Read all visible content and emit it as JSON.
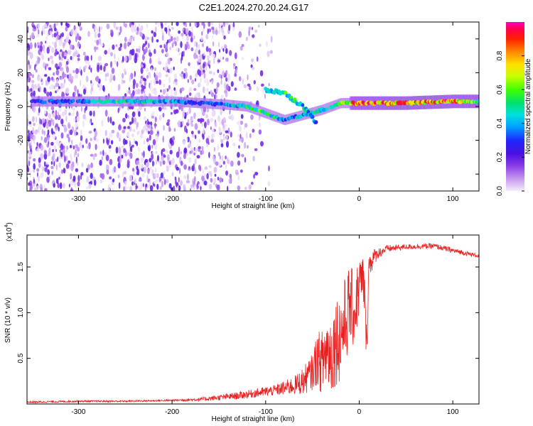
{
  "title": "C2E1.2024.270.20.24.G17",
  "chart_data": [
    {
      "type": "heatmap",
      "xlabel": "Height of straight line (km)",
      "ylabel": "Frequency (Hz)",
      "xlim": [
        -355,
        128
      ],
      "ylim": [
        -50,
        50
      ],
      "xticks": [
        -300,
        -200,
        -100,
        0,
        100
      ],
      "xtick_labels": [
        "-300",
        "-200",
        "-100",
        "0",
        "100"
      ],
      "yticks": [
        -40,
        -20,
        0,
        20,
        40
      ],
      "ytick_labels": [
        "-40",
        "-20",
        "0",
        "20",
        "40"
      ],
      "colorbar": {
        "label": "Normalized spectral amplitude",
        "range": [
          0,
          1
        ],
        "ticks": [
          0.0,
          0.2,
          0.4,
          0.6,
          0.8
        ],
        "tick_labels": [
          "0.0",
          "0.2",
          "0.4",
          "0.6",
          "0.8"
        ],
        "colormap": [
          "#f0e6f8",
          "#c79cf0",
          "#8a3ce6",
          "#5a14e0",
          "#1e28ff",
          "#00a0ff",
          "#00e0e0",
          "#00e070",
          "#40ff00",
          "#c8ff00",
          "#ffe000",
          "#ff8000",
          "#ff2000",
          "#ff0050",
          "#ff00c0"
        ]
      },
      "main_ridge": [
        {
          "x": -350,
          "y": 3,
          "amp": 0.3
        },
        {
          "x": -300,
          "y": 3,
          "amp": 0.35
        },
        {
          "x": -270,
          "y": 3,
          "amp": 0.55
        },
        {
          "x": -240,
          "y": 3,
          "amp": 0.5
        },
        {
          "x": -200,
          "y": 3,
          "amp": 0.45
        },
        {
          "x": -170,
          "y": 2,
          "amp": 0.3
        },
        {
          "x": -140,
          "y": 1,
          "amp": 0.4
        },
        {
          "x": -120,
          "y": 0,
          "amp": 0.55
        },
        {
          "x": -100,
          "y": -4,
          "amp": 0.6
        },
        {
          "x": -80,
          "y": -8,
          "amp": 0.4
        },
        {
          "x": -60,
          "y": -5,
          "amp": 0.45
        },
        {
          "x": -40,
          "y": -2,
          "amp": 0.5
        },
        {
          "x": -20,
          "y": 2,
          "amp": 0.6
        },
        {
          "x": 0,
          "y": 2,
          "amp": 0.95
        },
        {
          "x": 50,
          "y": 2,
          "amp": 0.85
        },
        {
          "x": 100,
          "y": 3,
          "amp": 0.9
        },
        {
          "x": 128,
          "y": 3,
          "amp": 0.5
        }
      ],
      "secondary_branch": [
        {
          "x": -100,
          "y": 10,
          "amp": 0.4
        },
        {
          "x": -80,
          "y": 8,
          "amp": 0.6
        },
        {
          "x": -60,
          "y": 0,
          "amp": 0.5
        },
        {
          "x": -45,
          "y": -10,
          "amp": 0.35
        }
      ]
    },
    {
      "type": "line",
      "xlabel": "Height of straight line (km)",
      "ylabel": "SNR (10 * v/v)",
      "scale_label": "(x10",
      "scale_exponent": "4",
      "xlim": [
        -355,
        128
      ],
      "ylim": [
        0,
        1.85
      ],
      "xticks": [
        -300,
        -200,
        -100,
        0,
        100
      ],
      "xtick_labels": [
        "-300",
        "-200",
        "-100",
        "0",
        "100"
      ],
      "yticks": [
        0.5,
        1.0,
        1.5
      ],
      "ytick_labels": [
        "0.5",
        "1.0",
        "1.5"
      ],
      "color": "#e82020",
      "series": [
        {
          "x": [
            -355,
            -300,
            -250,
            -200,
            -170,
            -150,
            -130,
            -110,
            -90,
            -70,
            -60,
            -50,
            -45,
            -40,
            -35,
            -30,
            -25,
            -20,
            -15,
            -10,
            -5,
            0,
            5,
            8,
            10,
            12,
            15,
            20,
            30,
            50,
            80,
            100,
            128
          ],
          "values": [
            0.02,
            0.03,
            0.03,
            0.04,
            0.05,
            0.07,
            0.09,
            0.12,
            0.15,
            0.2,
            0.25,
            0.35,
            0.5,
            0.45,
            0.6,
            0.55,
            0.7,
            0.75,
            0.9,
            1.1,
            1.0,
            1.3,
            1.35,
            0.6,
            1.45,
            1.55,
            1.6,
            1.65,
            1.7,
            1.72,
            1.73,
            1.68,
            1.62
          ],
          "noise": [
            0.01,
            0.01,
            0.01,
            0.01,
            0.02,
            0.03,
            0.04,
            0.05,
            0.06,
            0.1,
            0.15,
            0.2,
            0.3,
            0.35,
            0.45,
            0.45,
            0.5,
            0.5,
            0.5,
            0.45,
            0.4,
            0.35,
            0.3,
            0.2,
            0.25,
            0.15,
            0.1,
            0.06,
            0.04,
            0.03,
            0.03,
            0.03,
            0.02
          ]
        }
      ]
    }
  ]
}
